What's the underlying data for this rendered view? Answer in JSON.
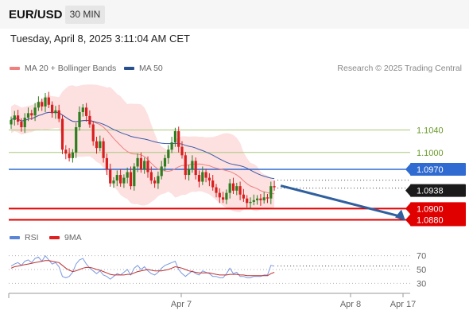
{
  "header": {
    "symbol": "EUR/USD",
    "timeframe": "30 MIN"
  },
  "datetime": "Tuesday, April 8, 2025 3:11:04 AM CET",
  "legend_top": [
    {
      "label": "MA 20 + Bollinger Bands",
      "color": "#f08080"
    },
    {
      "label": "MA 50",
      "color": "#2a4f8f"
    }
  ],
  "research": "Research © 2025 Trading Central",
  "legend_bottom": [
    {
      "label": "RSI",
      "color": "#5b84d6"
    },
    {
      "label": "9MA",
      "color": "#e02020"
    }
  ],
  "colors": {
    "up": "#2e7d1e",
    "down": "#d81e1e",
    "band": "#fde0e0",
    "ma20": "#f08080",
    "ma50": "#3b5aa8",
    "rsi": "#7a9ae0",
    "rsi_ma": "#c03030"
  },
  "chart_data": {
    "type": "candlestick",
    "y_range": [
      1.0868,
      1.113
    ],
    "levels": [
      {
        "value": 1.104,
        "label": "1.1040",
        "style": "resistance-minor",
        "color": "#a8c878"
      },
      {
        "value": 1.1,
        "label": "1.1000",
        "style": "resistance-minor",
        "color": "#a8c878"
      },
      {
        "value": 1.097,
        "label": "1.0970",
        "style": "pivot",
        "color": "#2f6bd0"
      },
      {
        "value": 1.09,
        "label": "1.0900",
        "style": "support",
        "color": "#e00000"
      },
      {
        "value": 1.088,
        "label": "1.0880",
        "style": "support",
        "color": "#e00000"
      }
    ],
    "current_price": {
      "value": 1.0938,
      "label": "1.0938"
    },
    "x_ticks": [
      "Apr 7",
      "Apr 8",
      "Apr 17"
    ],
    "candles": [
      {
        "o": 1.105,
        "c": 1.1058
      },
      {
        "o": 1.1058,
        "c": 1.1066
      },
      {
        "o": 1.1066,
        "c": 1.1055
      },
      {
        "o": 1.1055,
        "c": 1.1045
      },
      {
        "o": 1.1045,
        "c": 1.1062
      },
      {
        "o": 1.1062,
        "c": 1.107
      },
      {
        "o": 1.107,
        "c": 1.1066
      },
      {
        "o": 1.1066,
        "c": 1.108
      },
      {
        "o": 1.108,
        "c": 1.109
      },
      {
        "o": 1.109,
        "c": 1.1082
      },
      {
        "o": 1.1082,
        "c": 1.1098
      },
      {
        "o": 1.1098,
        "c": 1.1085
      },
      {
        "o": 1.1085,
        "c": 1.107
      },
      {
        "o": 1.107,
        "c": 1.1075
      },
      {
        "o": 1.1075,
        "c": 1.106
      },
      {
        "o": 1.106,
        "c": 1.1005
      },
      {
        "o": 1.1005,
        "c": 1.0998
      },
      {
        "o": 1.0998,
        "c": 1.099
      },
      {
        "o": 1.099,
        "c": 1.1
      },
      {
        "o": 1.1,
        "c": 1.1045
      },
      {
        "o": 1.1045,
        "c": 1.1072
      },
      {
        "o": 1.1072,
        "c": 1.108
      },
      {
        "o": 1.108,
        "c": 1.1065
      },
      {
        "o": 1.1065,
        "c": 1.105
      },
      {
        "o": 1.105,
        "c": 1.102
      },
      {
        "o": 1.102,
        "c": 1.1008
      },
      {
        "o": 1.1008,
        "c": 1.102
      },
      {
        "o": 1.102,
        "c": 1.099
      },
      {
        "o": 1.099,
        "c": 1.097
      },
      {
        "o": 1.097,
        "c": 1.0945
      },
      {
        "o": 1.0945,
        "c": 1.095
      },
      {
        "o": 1.095,
        "c": 1.096
      },
      {
        "o": 1.096,
        "c": 1.0945
      },
      {
        "o": 1.0945,
        "c": 1.0955
      },
      {
        "o": 1.0955,
        "c": 1.0965
      },
      {
        "o": 1.0965,
        "c": 1.094
      },
      {
        "o": 1.094,
        "c": 1.0975
      },
      {
        "o": 1.0975,
        "c": 1.099
      },
      {
        "o": 1.099,
        "c": 1.097
      },
      {
        "o": 1.097,
        "c": 1.0985
      },
      {
        "o": 1.0985,
        "c": 1.0965
      },
      {
        "o": 1.0965,
        "c": 1.095
      },
      {
        "o": 1.095,
        "c": 1.0945
      },
      {
        "o": 1.0945,
        "c": 1.0958
      },
      {
        "o": 1.0958,
        "c": 1.0975
      },
      {
        "o": 1.0975,
        "c": 1.099
      },
      {
        "o": 1.099,
        "c": 1.1005
      },
      {
        "o": 1.1005,
        "c": 1.1018
      },
      {
        "o": 1.1018,
        "c": 1.1038
      },
      {
        "o": 1.1038,
        "c": 1.101
      },
      {
        "o": 1.101,
        "c": 1.0995
      },
      {
        "o": 1.0995,
        "c": 1.096
      },
      {
        "o": 1.096,
        "c": 1.097
      },
      {
        "o": 1.097,
        "c": 1.0985
      },
      {
        "o": 1.0985,
        "c": 1.096
      },
      {
        "o": 1.096,
        "c": 1.0948
      },
      {
        "o": 1.0948,
        "c": 1.0965
      },
      {
        "o": 1.0965,
        "c": 1.0955
      },
      {
        "o": 1.0955,
        "c": 1.095
      },
      {
        "o": 1.095,
        "c": 1.0938
      },
      {
        "o": 1.0938,
        "c": 1.0928
      },
      {
        "o": 1.0928,
        "c": 1.092
      },
      {
        "o": 1.092,
        "c": 1.0916
      },
      {
        "o": 1.0916,
        "c": 1.0928
      },
      {
        "o": 1.0928,
        "c": 1.0945
      },
      {
        "o": 1.0945,
        "c": 1.0932
      },
      {
        "o": 1.0932,
        "c": 1.094
      },
      {
        "o": 1.094,
        "c": 1.0925
      },
      {
        "o": 1.0925,
        "c": 1.0918
      },
      {
        "o": 1.0918,
        "c": 1.091
      },
      {
        "o": 1.091,
        "c": 1.0912
      },
      {
        "o": 1.0912,
        "c": 1.0915
      },
      {
        "o": 1.0915,
        "c": 1.0918
      },
      {
        "o": 1.0918,
        "c": 1.0915
      },
      {
        "o": 1.0915,
        "c": 1.092
      },
      {
        "o": 1.092,
        "c": 1.0918
      },
      {
        "o": 1.0918,
        "c": 1.094
      },
      {
        "o": 1.094,
        "c": 1.0938
      }
    ],
    "rsi": {
      "ticks": [
        70,
        50,
        30
      ],
      "range": [
        20,
        80
      ],
      "values": [
        55,
        58,
        60,
        56,
        62,
        64,
        60,
        66,
        68,
        62,
        70,
        64,
        58,
        60,
        54,
        40,
        38,
        40,
        46,
        58,
        64,
        66,
        58,
        52,
        48,
        44,
        48,
        42,
        40,
        36,
        40,
        44,
        42,
        46,
        50,
        42,
        52,
        56,
        50,
        54,
        48,
        44,
        42,
        46,
        52,
        56,
        58,
        60,
        62,
        50,
        44,
        40,
        44,
        48,
        44,
        42,
        48,
        46,
        44,
        40,
        40,
        38,
        38,
        44,
        52,
        44,
        46,
        40,
        40,
        38,
        38,
        40,
        40,
        40,
        42,
        42,
        56,
        55
      ],
      "ma_values": [
        52,
        54,
        55,
        56,
        57,
        58,
        59,
        60,
        61,
        62,
        63,
        63,
        62,
        61,
        60,
        56,
        52,
        49,
        47,
        48,
        50,
        52,
        53,
        53,
        52,
        50,
        49,
        47,
        45,
        43,
        42,
        42,
        42,
        42,
        43,
        43,
        45,
        47,
        48,
        49,
        50,
        49,
        48,
        48,
        48,
        49,
        50,
        52,
        54,
        53,
        52,
        50,
        48,
        47,
        46,
        45,
        45,
        45,
        45,
        44,
        43,
        42,
        42,
        42,
        43,
        43,
        43,
        42,
        42,
        41,
        41,
        41,
        41,
        41,
        41,
        41,
        44,
        46
      ]
    }
  }
}
